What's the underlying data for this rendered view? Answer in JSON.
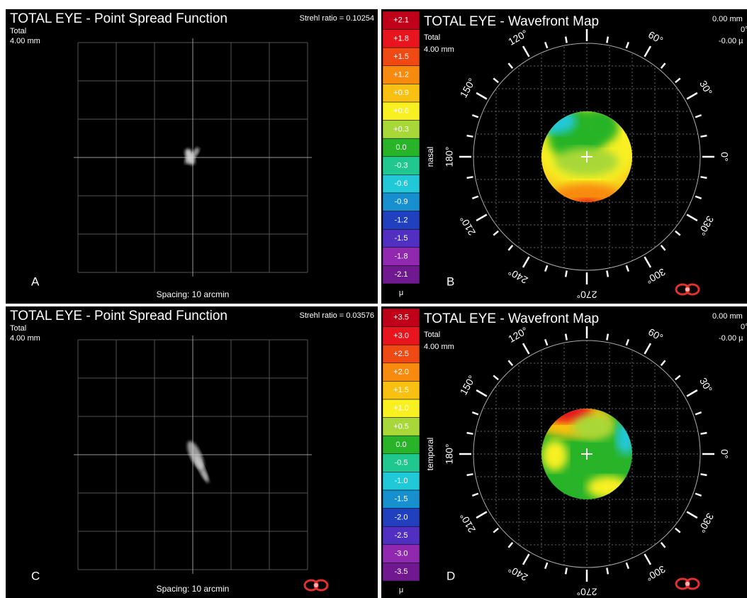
{
  "panels": [
    {
      "type": "psf",
      "letter": "A",
      "title": "TOTAL EYE - Point Spread Function",
      "subtitle": "Total",
      "pupil": "4.00 mm",
      "strehl": "Strehl ratio = 0.10254",
      "spacing": "Spacing:  10 arcmin",
      "logo": false
    },
    {
      "type": "wavefront",
      "letter": "B",
      "title": "TOTAL EYE - Wavefront Map",
      "subtitle": "Total",
      "pupil": "4.00 mm",
      "side_label": "nasal",
      "unit": "μ",
      "logo": true,
      "corner": [
        "0.00 mm",
        "0°",
        "-0.00 µ"
      ],
      "scale": [
        {
          "label": "+2.1",
          "color": "#c00018"
        },
        {
          "label": "+1.8",
          "color": "#e8141e"
        },
        {
          "label": "+1.5",
          "color": "#f04a14"
        },
        {
          "label": "+1.2",
          "color": "#f88a10"
        },
        {
          "label": "+0.9",
          "color": "#f8c010"
        },
        {
          "label": "+0.6",
          "color": "#f8f020"
        },
        {
          "label": "+0.3",
          "color": "#a8d838"
        },
        {
          "label": "0.0",
          "color": "#28b428"
        },
        {
          "label": "-0.3",
          "color": "#20c890"
        },
        {
          "label": "-0.6",
          "color": "#20c8d8"
        },
        {
          "label": "-0.9",
          "color": "#1890d0"
        },
        {
          "label": "-1.2",
          "color": "#2040c0"
        },
        {
          "label": "-1.5",
          "color": "#5030c0"
        },
        {
          "label": "-1.8",
          "color": "#9028b0"
        },
        {
          "label": "-2.1",
          "color": "#701890"
        }
      ],
      "angles": [
        {
          "value": 120,
          "label": "120°"
        },
        {
          "value": 60,
          "label": "60°"
        },
        {
          "value": 150,
          "label": "150°"
        },
        {
          "value": 30,
          "label": "30°"
        },
        {
          "value": 180,
          "label": "180°"
        },
        {
          "value": 0,
          "label": "0°"
        },
        {
          "value": 210,
          "label": "210°"
        },
        {
          "value": 330,
          "label": "330°"
        },
        {
          "value": 240,
          "label": "240°"
        },
        {
          "value": 300,
          "label": "300°"
        },
        {
          "value": 270,
          "label": "270°"
        }
      ]
    },
    {
      "type": "psf",
      "letter": "C",
      "title": "TOTAL EYE - Point Spread Function",
      "subtitle": "Total",
      "pupil": "4.00 mm",
      "strehl": "Strehl ratio = 0.03576",
      "spacing": "Spacing:  10 arcmin",
      "logo": true
    },
    {
      "type": "wavefront",
      "letter": "D",
      "title": "TOTAL EYE - Wavefront Map",
      "subtitle": "Total",
      "pupil": "4.00 mm",
      "side_label": "temporal",
      "unit": "μ",
      "logo": true,
      "corner": [
        "0.00 mm",
        "0°",
        "-0.00 µ"
      ],
      "scale": [
        {
          "label": "+3.5",
          "color": "#c00018"
        },
        {
          "label": "+3.0",
          "color": "#e8141e"
        },
        {
          "label": "+2.5",
          "color": "#f04a14"
        },
        {
          "label": "+2.0",
          "color": "#f88a10"
        },
        {
          "label": "+1.5",
          "color": "#f8c010"
        },
        {
          "label": "+1.0",
          "color": "#f8f020"
        },
        {
          "label": "+0.5",
          "color": "#a8d838"
        },
        {
          "label": "0.0",
          "color": "#28b428"
        },
        {
          "label": "-0.5",
          "color": "#20c890"
        },
        {
          "label": "-1.0",
          "color": "#20c8d8"
        },
        {
          "label": "-1.5",
          "color": "#1890d0"
        },
        {
          "label": "-2.0",
          "color": "#2040c0"
        },
        {
          "label": "-2.5",
          "color": "#5030c0"
        },
        {
          "label": "-3.0",
          "color": "#9028b0"
        },
        {
          "label": "-3.5",
          "color": "#701890"
        }
      ],
      "angles": [
        {
          "value": 120,
          "label": "120°"
        },
        {
          "value": 60,
          "label": "60°"
        },
        {
          "value": 150,
          "label": "150°"
        },
        {
          "value": 30,
          "label": "30°"
        },
        {
          "value": 180,
          "label": "180°"
        },
        {
          "value": 0,
          "label": "0°"
        },
        {
          "value": 210,
          "label": "210°"
        },
        {
          "value": 330,
          "label": "330°"
        },
        {
          "value": 240,
          "label": "240°"
        },
        {
          "value": 300,
          "label": "300°"
        },
        {
          "value": 270,
          "label": "270°"
        }
      ]
    }
  ]
}
